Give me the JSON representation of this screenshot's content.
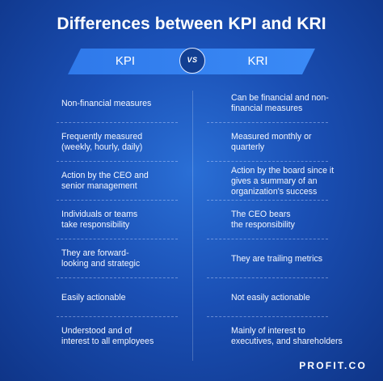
{
  "title": "Differences between KPI and KRI",
  "header": {
    "left": "KPI",
    "vs": "VS",
    "right": "KRI"
  },
  "rows": [
    {
      "kpi": "Non-financial measures",
      "kri": "Can be financial and non-\nfinancial measures"
    },
    {
      "kpi": "Frequently measured\n(weekly, hourly, daily)",
      "kri": "Measured monthly or\nquarterly"
    },
    {
      "kpi": "Action by the CEO and\nsenior management",
      "kri": "Action by the board since it\ngives a summary of an\norganization's success"
    },
    {
      "kpi": "Individuals or teams\ntake responsibility",
      "kri": "The CEO bears\nthe responsibility"
    },
    {
      "kpi": "They are forward-\nlooking and strategic",
      "kri": "They are trailing metrics"
    },
    {
      "kpi": "Easily actionable",
      "kri": "Not easily actionable"
    },
    {
      "kpi": "Understood and of\ninterest to all employees",
      "kri": "Mainly of interest to\nexecutives, and shareholders"
    }
  ],
  "logo": "PROFIT.CO"
}
